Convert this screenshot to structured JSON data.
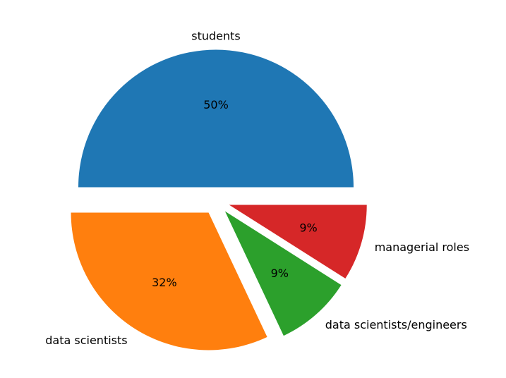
{
  "chart_data": {
    "type": "pie",
    "categories": [
      "students",
      "data scientists",
      "data scientists/engineers",
      "managerial roles"
    ],
    "values": [
      50,
      32,
      9,
      9
    ],
    "percent_labels": [
      "50%",
      "32%",
      "9%",
      "9%"
    ],
    "colors": [
      "#1f77b4",
      "#ff7f0e",
      "#2ca02c",
      "#d62728"
    ],
    "exploded": [
      true,
      true,
      true,
      true
    ],
    "start_angle_deg": 0,
    "direction": "counterclockwise",
    "title": "",
    "legend": "none"
  }
}
